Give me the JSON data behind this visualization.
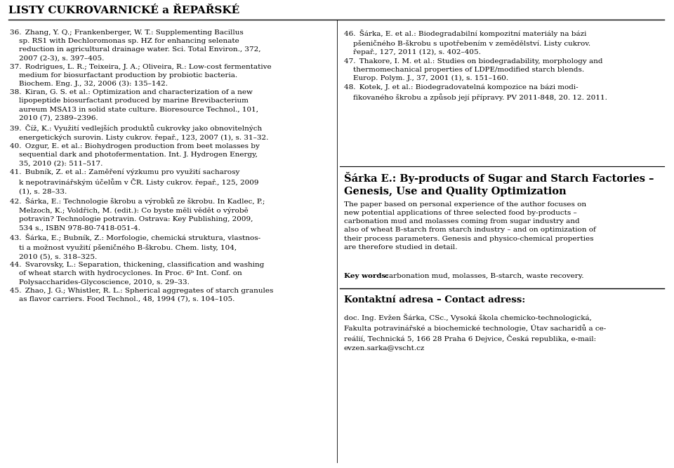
{
  "bg_color": "#ffffff",
  "header_title": "LISTY CUKROVARNICKÉ a ŘEPAŘSKÉ",
  "fs_ref": 7.5,
  "fs_header": 11.0,
  "fs_section": 10.5,
  "fs_contact_title": 9.5,
  "left_refs": [
    "36. Zhang, Y. Q.; Frankenberger, W. T.: Supplementing Bacillus\n    sp. RS1 with Dechloromonas sp. HZ for enhancing selenate\n    reduction in agricultural drainage water. Sci. Total Environ., 372,\n    2007 (2-3), s. 397–405.",
    "37. Rodrigues, L. R.; Teixeira, J. A.; Oliveira, R.: Low-cost fermentative\n    medium for biosurfactant production by probiotic bacteria.\n    Biochem. Eng. J., 32, 2006 (3): 135–142.",
    "38. Kiran, G. S. et al.: Optimization and characterization of a new\n    lipopeptide biosurfactant produced by marine Brevibacterium\n    aureum MSA13 in solid state culture. Bioresource Technol., 101,\n    2010 (7), 2389–2396.",
    "39. Číž, K.: Využití vedlejších produktů cukrovky jako obnovitelných\n    energetických surovin. Listy cukrov. řepař., 123, 2007 (1), s. 31–32.",
    "40. Ozgur, E. et al.: Biohydrogen production from beet molasses by\n    sequential dark and photofermentation. Int. J. Hydrogen Energy,\n    35, 2010 (2): 511–517.",
    "41. Bubník, Z. et al.: Zaměření výzkumu pro využití sacharosy\n    k nepotravinářským účelům v ČR. Listy cukrov. řepař., 125, 2009\n    (1), s. 28–33.",
    "42. Šárka, E.: Technologie škrobu a výrobků ze škrobu. In Kadlec, P.;\n    Melzoch, K.; Voldřich, M. (edit.): Co byste měli vědět o výrobě\n    potravin? Technologie potravin. Ostrava: Key Publishing, 2009,\n    534 s., ISBN 978-80-7418-051-4.",
    "43. Šárka, E.; Bubník, Z.: Morfologie, chemická struktura, vlastnos-\n    ti a možnost využití pšeničného B-škrobu. Chem. listy, 104,\n    2010 (5), s. 318–325.",
    "44. Svarovsky, L.: Separation, thickening, classification and washing\n    of wheat starch with hydrocyclones. In Proc. 6ᵇ Int. Conf. on\n    Polysaccharides-Glycoscience, 2010, s. 29–33.",
    "45. Zhao, J. G.; Whistler, R. L.: Spherical aggregates of starch granules\n    as flavor carriers. Food Technol., 48, 1994 (7), s. 104–105."
  ],
  "right_refs": [
    "46. Šárka, E. et al.: Biodegradabilní kompozitní materiály na bázi\n    pšeničného B-škrobu s upotřebením v zemědělství. Listy cukrov.\n    řepař., 127, 2011 (12), s. 402–405.",
    "47. Thakore, I. M. et al.: Studies on biodegradability, morphology and\n    thermomechanical properties of LDPE/modified starch blends.\n    Europ. Polym. J., 37, 2001 (1), s. 151–160.",
    "48. Kotek, J. et al.: Biodegradovatelná kompozice na bázi modi-\n    fikovaného škrobu a způsob její přípravy. PV 2011-848, 20. 12. 2011."
  ],
  "section_title_line1": "Šárka E.: By-products of Sugar and Starch Factories –",
  "section_title_line2": "Genesis, Use and Quality Optimization",
  "abstract": "The paper based on personal experience of the author focuses on\nnew potential applications of three selected food by-products –\ncarbonation mud and molasses coming from sugar industry and\nalso of wheat B-starch from starch industry – and on optimization of\ntheir process parameters. Genesis and physico-chemical properties\nare therefore studied in detail.",
  "keywords_label": "Key words:",
  "keywords_text": " carbonation mud, molasses, B-starch, waste recovery.",
  "contact_title": "Kontaktní adresa – Contact adress:",
  "contact_text": "doc. Ing. Evžen Šárka, CSc., Vysoká škola chemicko-technologická,\nFakulta potravinářské a biochemické technologie, Útav sacharidů a ce-\nreálií, Technická 5, 166 28 Praha 6 Dejvice, Česká republika, e-mail:\nevzen.sarka@vscht.cz"
}
